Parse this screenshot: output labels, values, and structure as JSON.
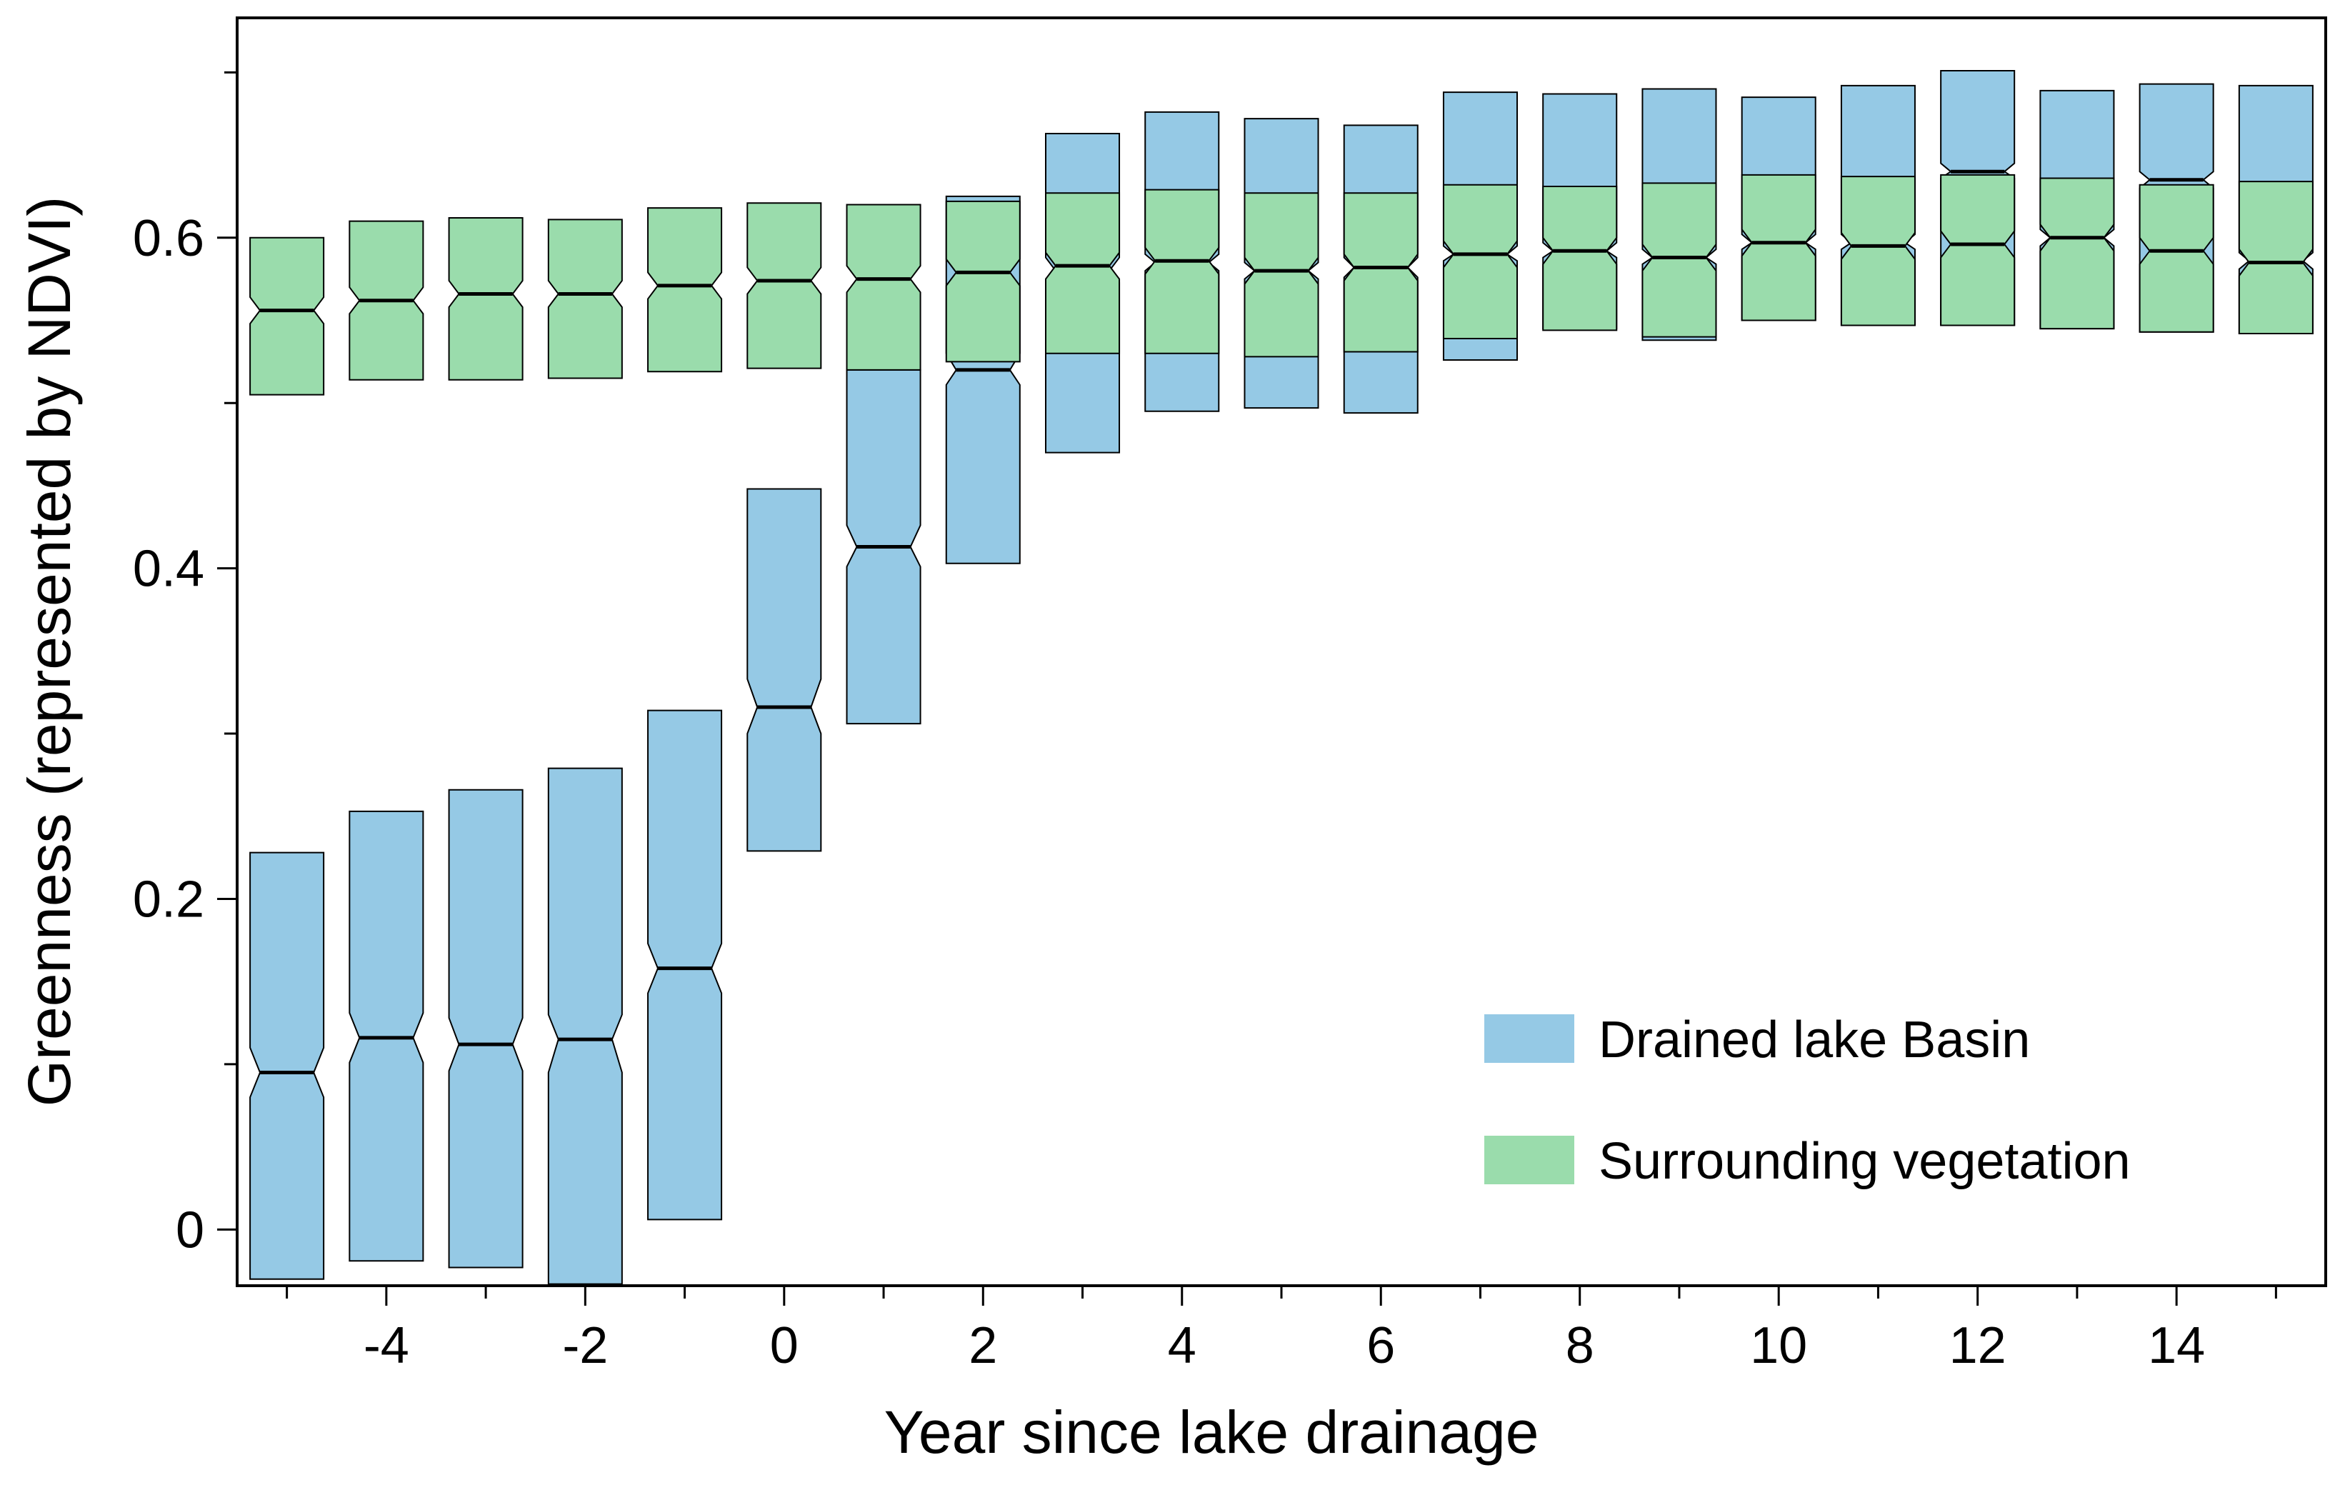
{
  "chart_data": {
    "type": "boxplot",
    "variant": "notched",
    "title": "",
    "xlabel": "Year since lake drainage",
    "ylabel": "Greenness (represented by NDVI)",
    "xlim": [
      -5.5,
      15.5
    ],
    "ylim": [
      -0.034,
      0.733
    ],
    "x_tick_values": [
      -4,
      -2,
      0,
      2,
      4,
      6,
      8,
      10,
      12,
      14
    ],
    "x_tick_labels": [
      "-4",
      "-2",
      "0",
      "2",
      "4",
      "6",
      "8",
      "10",
      "12",
      "14"
    ],
    "x_minor_ticks": [
      -5,
      -3,
      -1,
      1,
      3,
      5,
      7,
      9,
      11,
      13,
      15
    ],
    "y_tick_values": [
      0,
      0.2,
      0.4,
      0.6
    ],
    "y_tick_labels": [
      "0",
      "0.2",
      "0.4",
      "0.6"
    ],
    "y_minor_ticks": [
      0.1,
      0.3,
      0.5,
      0.7
    ],
    "legend_position": "bottom-right",
    "series": [
      {
        "name": "Drained lake Basin",
        "color": "#95c9e5",
        "boxes": [
          {
            "x": -5,
            "q1": -0.03,
            "median": 0.095,
            "q3": 0.228,
            "notch_low": 0.08,
            "notch_high": 0.11
          },
          {
            "x": -4,
            "q1": -0.019,
            "median": 0.116,
            "q3": 0.253,
            "notch_low": 0.101,
            "notch_high": 0.131
          },
          {
            "x": -3,
            "q1": -0.023,
            "median": 0.112,
            "q3": 0.266,
            "notch_low": 0.096,
            "notch_high": 0.128
          },
          {
            "x": -2,
            "q1": -0.033,
            "median": 0.115,
            "q3": 0.279,
            "notch_low": 0.095,
            "notch_high": 0.13
          },
          {
            "x": -1,
            "q1": 0.006,
            "median": 0.158,
            "q3": 0.314,
            "notch_low": 0.143,
            "notch_high": 0.173
          },
          {
            "x": 0,
            "q1": 0.229,
            "median": 0.316,
            "q3": 0.448,
            "notch_low": 0.3,
            "notch_high": 0.333
          },
          {
            "x": 1,
            "q1": 0.306,
            "median": 0.413,
            "q3": 0.52,
            "notch_low": 0.401,
            "notch_high": 0.426
          },
          {
            "x": 2,
            "q1": 0.403,
            "median": 0.52,
            "q3": 0.625,
            "notch_low": 0.511,
            "notch_high": 0.53
          },
          {
            "x": 3,
            "q1": 0.47,
            "median": 0.58,
            "q3": 0.663,
            "notch_low": 0.573,
            "notch_high": 0.588
          },
          {
            "x": 4,
            "q1": 0.495,
            "median": 0.585,
            "q3": 0.676,
            "notch_low": 0.58,
            "notch_high": 0.59
          },
          {
            "x": 5,
            "q1": 0.497,
            "median": 0.58,
            "q3": 0.672,
            "notch_low": 0.575,
            "notch_high": 0.585
          },
          {
            "x": 6,
            "q1": 0.494,
            "median": 0.582,
            "q3": 0.668,
            "notch_low": 0.576,
            "notch_high": 0.588
          },
          {
            "x": 7,
            "q1": 0.526,
            "median": 0.59,
            "q3": 0.688,
            "notch_low": 0.586,
            "notch_high": 0.595
          },
          {
            "x": 8,
            "q1": 0.545,
            "median": 0.592,
            "q3": 0.687,
            "notch_low": 0.588,
            "notch_high": 0.597
          },
          {
            "x": 9,
            "q1": 0.538,
            "median": 0.588,
            "q3": 0.69,
            "notch_low": 0.584,
            "notch_high": 0.593
          },
          {
            "x": 10,
            "q1": 0.55,
            "median": 0.597,
            "q3": 0.685,
            "notch_low": 0.593,
            "notch_high": 0.602
          },
          {
            "x": 11,
            "q1": 0.547,
            "median": 0.597,
            "q3": 0.692,
            "notch_low": 0.593,
            "notch_high": 0.602
          },
          {
            "x": 12,
            "q1": 0.547,
            "median": 0.64,
            "q3": 0.701,
            "notch_low": 0.636,
            "notch_high": 0.645
          },
          {
            "x": 13,
            "q1": 0.545,
            "median": 0.6,
            "q3": 0.689,
            "notch_low": 0.595,
            "notch_high": 0.605
          },
          {
            "x": 14,
            "q1": 0.543,
            "median": 0.635,
            "q3": 0.693,
            "notch_low": 0.63,
            "notch_high": 0.64
          },
          {
            "x": 15,
            "q1": 0.542,
            "median": 0.586,
            "q3": 0.692,
            "notch_low": 0.581,
            "notch_high": 0.591
          }
        ]
      },
      {
        "name": "Surrounding vegetation",
        "color": "#9adcac",
        "boxes": [
          {
            "x": -5,
            "q1": 0.505,
            "median": 0.556,
            "q3": 0.6,
            "notch_low": 0.548,
            "notch_high": 0.564
          },
          {
            "x": -4,
            "q1": 0.514,
            "median": 0.562,
            "q3": 0.61,
            "notch_low": 0.554,
            "notch_high": 0.57
          },
          {
            "x": -3,
            "q1": 0.514,
            "median": 0.566,
            "q3": 0.612,
            "notch_low": 0.558,
            "notch_high": 0.574
          },
          {
            "x": -2,
            "q1": 0.515,
            "median": 0.566,
            "q3": 0.611,
            "notch_low": 0.558,
            "notch_high": 0.574
          },
          {
            "x": -1,
            "q1": 0.519,
            "median": 0.571,
            "q3": 0.618,
            "notch_low": 0.563,
            "notch_high": 0.579
          },
          {
            "x": 0,
            "q1": 0.521,
            "median": 0.574,
            "q3": 0.621,
            "notch_low": 0.566,
            "notch_high": 0.582
          },
          {
            "x": 1,
            "q1": 0.52,
            "median": 0.575,
            "q3": 0.62,
            "notch_low": 0.567,
            "notch_high": 0.583
          },
          {
            "x": 2,
            "q1": 0.525,
            "median": 0.579,
            "q3": 0.622,
            "notch_low": 0.571,
            "notch_high": 0.587
          },
          {
            "x": 3,
            "q1": 0.53,
            "median": 0.583,
            "q3": 0.627,
            "notch_low": 0.575,
            "notch_high": 0.591
          },
          {
            "x": 4,
            "q1": 0.53,
            "median": 0.586,
            "q3": 0.629,
            "notch_low": 0.578,
            "notch_high": 0.594
          },
          {
            "x": 5,
            "q1": 0.528,
            "median": 0.58,
            "q3": 0.627,
            "notch_low": 0.572,
            "notch_high": 0.588
          },
          {
            "x": 6,
            "q1": 0.531,
            "median": 0.582,
            "q3": 0.627,
            "notch_low": 0.574,
            "notch_high": 0.59
          },
          {
            "x": 7,
            "q1": 0.539,
            "median": 0.59,
            "q3": 0.632,
            "notch_low": 0.582,
            "notch_high": 0.598
          },
          {
            "x": 8,
            "q1": 0.544,
            "median": 0.592,
            "q3": 0.631,
            "notch_low": 0.584,
            "notch_high": 0.6
          },
          {
            "x": 9,
            "q1": 0.54,
            "median": 0.588,
            "q3": 0.633,
            "notch_low": 0.58,
            "notch_high": 0.596
          },
          {
            "x": 10,
            "q1": 0.55,
            "median": 0.597,
            "q3": 0.638,
            "notch_low": 0.589,
            "notch_high": 0.605
          },
          {
            "x": 11,
            "q1": 0.547,
            "median": 0.595,
            "q3": 0.637,
            "notch_low": 0.587,
            "notch_high": 0.603
          },
          {
            "x": 12,
            "q1": 0.547,
            "median": 0.596,
            "q3": 0.638,
            "notch_low": 0.588,
            "notch_high": 0.604
          },
          {
            "x": 13,
            "q1": 0.545,
            "median": 0.6,
            "q3": 0.636,
            "notch_low": 0.592,
            "notch_high": 0.608
          },
          {
            "x": 14,
            "q1": 0.543,
            "median": 0.592,
            "q3": 0.632,
            "notch_low": 0.584,
            "notch_high": 0.6
          },
          {
            "x": 15,
            "q1": 0.542,
            "median": 0.585,
            "q3": 0.634,
            "notch_low": 0.577,
            "notch_high": 0.593
          }
        ]
      }
    ]
  }
}
